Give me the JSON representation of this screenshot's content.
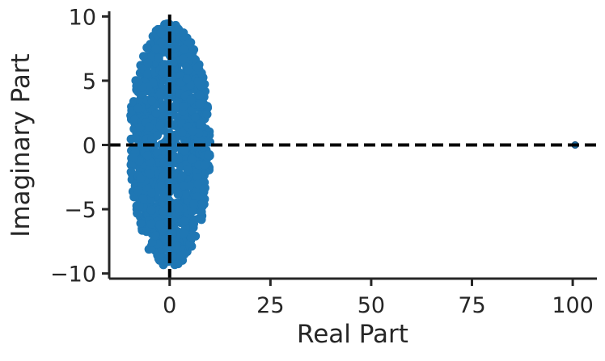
{
  "chart_data": {
    "type": "scatter",
    "title": "",
    "xlabel": "Real Part",
    "ylabel": "Imaginary Part",
    "xlim": [
      -15,
      106
    ],
    "ylim": [
      -10.4,
      10.4
    ],
    "xticks": [
      0,
      25,
      50,
      75,
      100
    ],
    "yticks": [
      -10,
      -5,
      0,
      5,
      10
    ],
    "xtick_labels": [
      "0",
      "25",
      "50",
      "75",
      "100"
    ],
    "ytick_labels": [
      "−10",
      "−5",
      "0",
      "5",
      "10"
    ],
    "grid": false,
    "reference_lines": [
      {
        "orientation": "vertical",
        "x": 0,
        "style": "dashed",
        "color": "#000000"
      },
      {
        "orientation": "horizontal",
        "y": 0,
        "style": "dashed",
        "color": "#000000"
      }
    ],
    "series": [
      {
        "color": "#1f77b4",
        "x": [
          100.6
        ],
        "y": [
          0
        ],
        "cluster": {
          "description": "elliptical cloud of eigenvalues",
          "center_x": 0,
          "center_y": 0,
          "radius_x": 10,
          "radius_y": 9.5,
          "count": 1200
        }
      }
    ]
  }
}
